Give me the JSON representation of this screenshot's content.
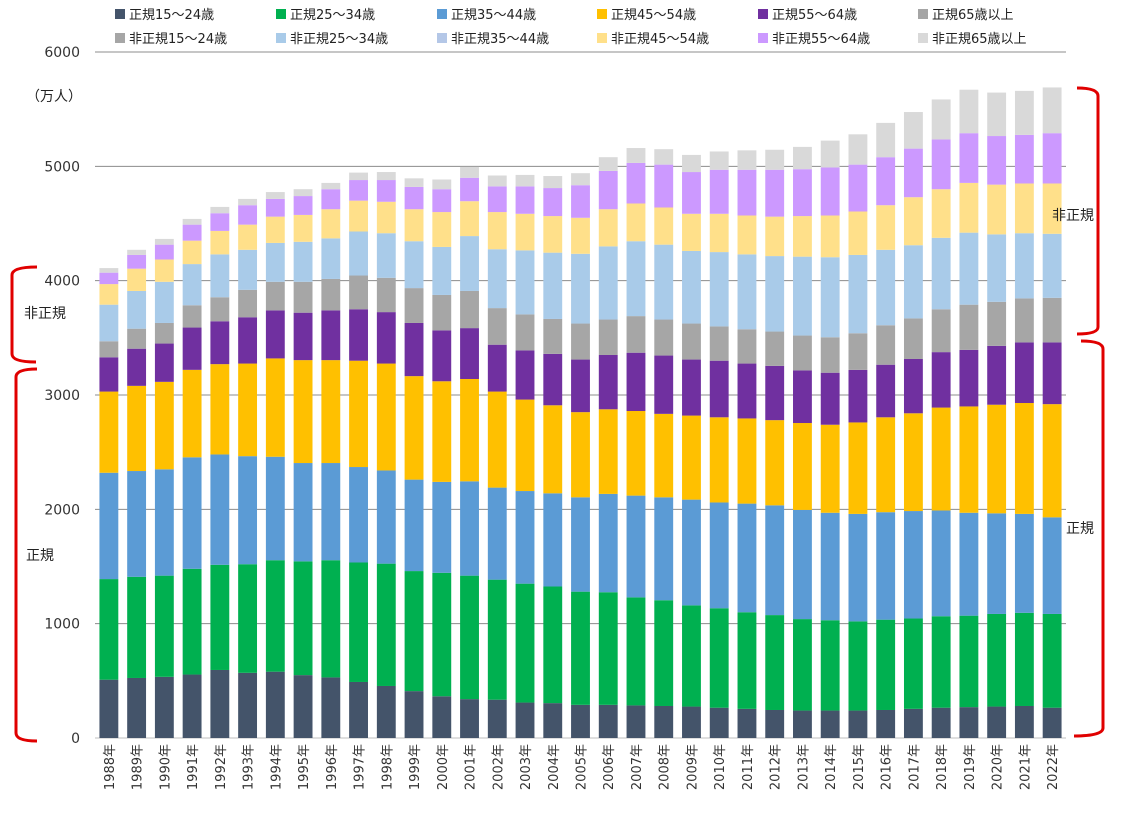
{
  "chart_data": {
    "type": "bar",
    "stacked": true,
    "unit_label": "（万人）",
    "ylim": [
      0,
      6000
    ],
    "yticks": [
      0,
      1000,
      2000,
      3000,
      4000,
      5000,
      6000
    ],
    "grid": "horizontal",
    "legend_position": "top",
    "categories": [
      "1988年",
      "1989年",
      "1990年",
      "1991年",
      "1992年",
      "1993年",
      "1994年",
      "1995年",
      "1996年",
      "1997年",
      "1998年",
      "1999年",
      "2000年",
      "2001年",
      "2002年",
      "2003年",
      "2004年",
      "2005年",
      "2006年",
      "2007年",
      "2008年",
      "2009年",
      "2010年",
      "2011年",
      "2012年",
      "2013年",
      "2014年",
      "2015年",
      "2016年",
      "2017年",
      "2018年",
      "2019年",
      "2020年",
      "2021年",
      "2022年"
    ],
    "series": [
      {
        "name": "正規15～24歳",
        "color": "#44546a",
        "values": [
          510,
          525,
          535,
          555,
          595,
          570,
          580,
          550,
          530,
          490,
          455,
          410,
          365,
          340,
          335,
          310,
          305,
          290,
          290,
          285,
          280,
          275,
          265,
          255,
          245,
          240,
          240,
          240,
          245,
          255,
          265,
          270,
          275,
          280,
          265
        ]
      },
      {
        "name": "正規25～34歳",
        "color": "#00b050",
        "values": [
          880,
          885,
          885,
          925,
          920,
          950,
          975,
          995,
          1025,
          1045,
          1070,
          1050,
          1080,
          1080,
          1050,
          1040,
          1020,
          990,
          985,
          945,
          925,
          885,
          870,
          845,
          830,
          800,
          790,
          780,
          790,
          790,
          800,
          800,
          810,
          815,
          820
        ]
      },
      {
        "name": "正規35～44歳",
        "color": "#5b9bd5",
        "values": [
          930,
          925,
          930,
          975,
          965,
          945,
          905,
          860,
          850,
          835,
          815,
          800,
          795,
          825,
          805,
          810,
          815,
          825,
          860,
          890,
          900,
          925,
          925,
          950,
          960,
          955,
          940,
          940,
          940,
          940,
          925,
          900,
          880,
          865,
          845
        ]
      },
      {
        "name": "正規45～54歳",
        "color": "#ffc000",
        "values": [
          710,
          745,
          765,
          765,
          790,
          810,
          860,
          900,
          900,
          930,
          935,
          905,
          880,
          895,
          840,
          800,
          770,
          745,
          740,
          740,
          730,
          735,
          745,
          745,
          745,
          760,
          770,
          800,
          830,
          855,
          900,
          930,
          950,
          970,
          990
        ]
      },
      {
        "name": "正規55～64歳",
        "color": "#7030a0",
        "values": [
          300,
          325,
          335,
          370,
          375,
          405,
          420,
          415,
          435,
          450,
          450,
          465,
          445,
          445,
          410,
          430,
          450,
          460,
          475,
          510,
          510,
          490,
          495,
          480,
          475,
          460,
          455,
          460,
          460,
          475,
          485,
          495,
          515,
          530,
          540
        ]
      },
      {
        "name": "正規65歳以上",
        "color": "#a5a5a5",
        "values": [
          0,
          0,
          0,
          0,
          0,
          0,
          0,
          0,
          0,
          0,
          0,
          0,
          0,
          0,
          0,
          0,
          0,
          0,
          0,
          0,
          0,
          0,
          0,
          0,
          0,
          0,
          0,
          0,
          0,
          0,
          0,
          0,
          0,
          0,
          0
        ]
      },
      {
        "name": "非正規15～24歳",
        "color": "#a6a6a6",
        "values": [
          140,
          175,
          180,
          195,
          210,
          240,
          250,
          270,
          275,
          295,
          300,
          305,
          310,
          325,
          320,
          315,
          305,
          315,
          310,
          320,
          315,
          315,
          300,
          300,
          300,
          305,
          310,
          320,
          345,
          355,
          375,
          395,
          385,
          385,
          390
        ]
      },
      {
        "name": "非正規25～34歳",
        "color": "#a9cbe9",
        "values": [
          320,
          330,
          360,
          360,
          375,
          350,
          340,
          350,
          355,
          385,
          390,
          410,
          420,
          480,
          515,
          560,
          580,
          610,
          640,
          655,
          655,
          635,
          650,
          655,
          660,
          690,
          700,
          685,
          660,
          640,
          625,
          630,
          590,
          570,
          560
        ]
      },
      {
        "name": "非正規35～44歳",
        "color": "#b4c7e7",
        "values": [
          0,
          0,
          0,
          0,
          0,
          0,
          0,
          0,
          0,
          0,
          0,
          0,
          0,
          0,
          0,
          0,
          0,
          0,
          0,
          0,
          0,
          0,
          0,
          0,
          0,
          0,
          0,
          0,
          0,
          0,
          0,
          0,
          0,
          0,
          0
        ]
      },
      {
        "name": "非正規45～54歳",
        "color": "#ffe08a",
        "values": [
          180,
          195,
          195,
          205,
          205,
          220,
          230,
          235,
          255,
          270,
          275,
          280,
          305,
          305,
          325,
          320,
          320,
          315,
          325,
          330,
          325,
          325,
          335,
          340,
          345,
          355,
          365,
          380,
          390,
          420,
          425,
          435,
          435,
          435,
          440
        ]
      },
      {
        "name": "非正規55～64歳",
        "color": "#cc99ff",
        "values": [
          100,
          120,
          130,
          140,
          155,
          170,
          155,
          165,
          175,
          180,
          190,
          195,
          200,
          205,
          225,
          240,
          245,
          285,
          335,
          355,
          375,
          365,
          385,
          400,
          410,
          410,
          420,
          410,
          420,
          425,
          435,
          435,
          425,
          425,
          440
        ]
      },
      {
        "name": "非正規65歳以上",
        "color": "#d9d9d9",
        "values": [
          40,
          45,
          50,
          50,
          55,
          55,
          60,
          60,
          55,
          65,
          70,
          75,
          85,
          95,
          95,
          100,
          105,
          105,
          120,
          130,
          135,
          150,
          160,
          170,
          175,
          195,
          235,
          265,
          300,
          320,
          350,
          380,
          380,
          385,
          400
        ]
      }
    ],
    "group_labels": {
      "non_regular_upper": "非正規",
      "regular_lower": "正規",
      "non_regular_left": "非正規",
      "regular_left": "正規"
    }
  }
}
